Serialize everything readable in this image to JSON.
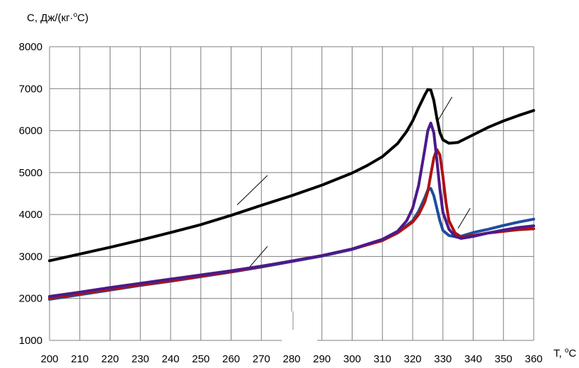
{
  "chart_data": {
    "type": "line",
    "ylabel_prefix": "C, Дж/(кг·",
    "ylabel_sup": "o",
    "ylabel_suffix": "C)",
    "xlabel_prefix": "T, ",
    "xlabel_sup": "o",
    "xlabel_suffix": "C",
    "xlim": [
      200,
      360
    ],
    "ylim": [
      1000,
      8000
    ],
    "x_ticks": [
      "200",
      "210",
      "220",
      "230",
      "240",
      "250",
      "260",
      "270",
      "280",
      "290",
      "300",
      "310",
      "320",
      "330",
      "340",
      "350",
      "360"
    ],
    "y_ticks": [
      "1000",
      "2000",
      "3000",
      "4000",
      "5000",
      "6000",
      "7000",
      "8000"
    ],
    "grid": true,
    "legend": "none",
    "series": [
      {
        "color": "#000000",
        "points": [
          [
            200,
            2900
          ],
          [
            210,
            3060
          ],
          [
            220,
            3220
          ],
          [
            230,
            3390
          ],
          [
            240,
            3570
          ],
          [
            250,
            3760
          ],
          [
            260,
            3980
          ],
          [
            270,
            4220
          ],
          [
            280,
            4450
          ],
          [
            290,
            4700
          ],
          [
            300,
            4990
          ],
          [
            305,
            5170
          ],
          [
            310,
            5380
          ],
          [
            315,
            5690
          ],
          [
            318,
            5980
          ],
          [
            320,
            6230
          ],
          [
            322,
            6550
          ],
          [
            324,
            6850
          ],
          [
            325,
            6980
          ],
          [
            326,
            6970
          ],
          [
            327,
            6720
          ],
          [
            328,
            6300
          ],
          [
            329,
            5950
          ],
          [
            330,
            5780
          ],
          [
            332,
            5700
          ],
          [
            335,
            5720
          ],
          [
            340,
            5900
          ],
          [
            345,
            6080
          ],
          [
            350,
            6230
          ],
          [
            355,
            6360
          ],
          [
            360,
            6480
          ]
        ]
      },
      {
        "color": "#1f4e9c",
        "points": [
          [
            200,
            1980
          ],
          [
            210,
            2090
          ],
          [
            220,
            2200
          ],
          [
            230,
            2310
          ],
          [
            240,
            2410
          ],
          [
            250,
            2520
          ],
          [
            260,
            2630
          ],
          [
            270,
            2750
          ],
          [
            280,
            2880
          ],
          [
            290,
            3010
          ],
          [
            300,
            3170
          ],
          [
            310,
            3390
          ],
          [
            315,
            3570
          ],
          [
            320,
            3850
          ],
          [
            322,
            4080
          ],
          [
            324,
            4400
          ],
          [
            325,
            4580
          ],
          [
            326,
            4620
          ],
          [
            327,
            4450
          ],
          [
            328,
            4150
          ],
          [
            329,
            3850
          ],
          [
            330,
            3620
          ],
          [
            332,
            3500
          ],
          [
            335,
            3460
          ],
          [
            340,
            3570
          ],
          [
            345,
            3650
          ],
          [
            350,
            3740
          ],
          [
            355,
            3820
          ],
          [
            360,
            3890
          ]
        ]
      },
      {
        "color": "#b01212",
        "points": [
          [
            200,
            2010
          ],
          [
            210,
            2110
          ],
          [
            220,
            2220
          ],
          [
            230,
            2320
          ],
          [
            240,
            2420
          ],
          [
            250,
            2530
          ],
          [
            260,
            2640
          ],
          [
            270,
            2760
          ],
          [
            280,
            2890
          ],
          [
            290,
            3020
          ],
          [
            300,
            3180
          ],
          [
            310,
            3380
          ],
          [
            315,
            3560
          ],
          [
            320,
            3820
          ],
          [
            322,
            4000
          ],
          [
            324,
            4300
          ],
          [
            325,
            4550
          ],
          [
            326,
            4950
          ],
          [
            327,
            5350
          ],
          [
            328,
            5550
          ],
          [
            329,
            5420
          ],
          [
            330,
            4900
          ],
          [
            331,
            4300
          ],
          [
            332,
            3850
          ],
          [
            334,
            3560
          ],
          [
            336,
            3470
          ],
          [
            340,
            3500
          ],
          [
            345,
            3560
          ],
          [
            350,
            3600
          ],
          [
            355,
            3640
          ],
          [
            360,
            3660
          ]
        ]
      },
      {
        "color": "#4b1a8c",
        "points": [
          [
            200,
            2050
          ],
          [
            210,
            2150
          ],
          [
            220,
            2260
          ],
          [
            230,
            2360
          ],
          [
            240,
            2460
          ],
          [
            250,
            2560
          ],
          [
            260,
            2660
          ],
          [
            270,
            2770
          ],
          [
            280,
            2890
          ],
          [
            290,
            3020
          ],
          [
            300,
            3180
          ],
          [
            310,
            3410
          ],
          [
            315,
            3600
          ],
          [
            318,
            3850
          ],
          [
            320,
            4150
          ],
          [
            322,
            4700
          ],
          [
            324,
            5550
          ],
          [
            325,
            6000
          ],
          [
            326,
            6180
          ],
          [
            327,
            5950
          ],
          [
            328,
            5300
          ],
          [
            329,
            4600
          ],
          [
            330,
            4050
          ],
          [
            332,
            3650
          ],
          [
            334,
            3480
          ],
          [
            336,
            3430
          ],
          [
            340,
            3480
          ],
          [
            345,
            3560
          ],
          [
            350,
            3630
          ],
          [
            355,
            3690
          ],
          [
            360,
            3730
          ]
        ]
      }
    ],
    "annotations": [
      {
        "x1": 262,
        "y1": 4230,
        "x2": 272,
        "y2": 4930
      },
      {
        "x1": 266,
        "y1": 2740,
        "x2": 272,
        "y2": 3240
      },
      {
        "x1": 328,
        "y1": 6200,
        "x2": 333,
        "y2": 6800
      },
      {
        "x1": 335,
        "y1": 3670,
        "x2": 339,
        "y2": 4150
      }
    ]
  }
}
